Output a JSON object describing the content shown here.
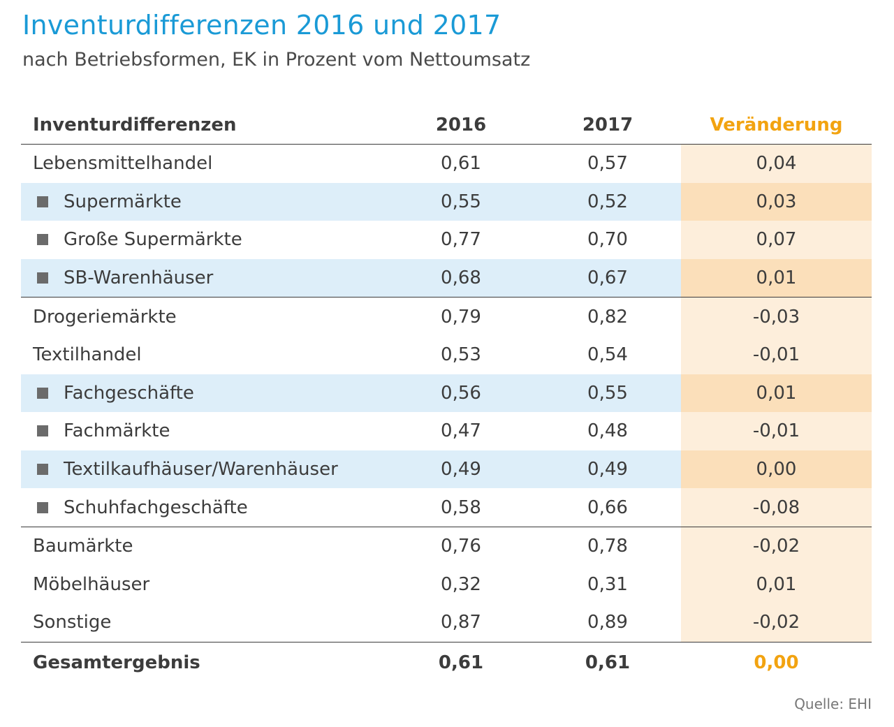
{
  "title": "Inventurdifferenzen 2016 und 2017",
  "subtitle": "nach Betriebsformen, EK in Prozent vom Nettoumsatz",
  "source": "Quelle: EHI",
  "colors": {
    "title": "#1a9ad6",
    "highlight": "#f2a310",
    "row_shade": "#ddeef9",
    "change_col": "#fdeedb",
    "change_col_shaded": "#fbdfba",
    "bullet": "#6b6b6b"
  },
  "chart_data": {
    "type": "table",
    "columns": [
      "Inventurdifferenzen",
      "2016",
      "2017",
      "Veränderung"
    ],
    "rows": [
      {
        "label": "Lebensmittelhandel",
        "level": 0,
        "y2016": "0,61",
        "y2017": "0,57",
        "change": "0,04"
      },
      {
        "label": "Supermärkte",
        "level": 1,
        "y2016": "0,55",
        "y2017": "0,52",
        "change": "0,03"
      },
      {
        "label": "Große Supermärkte",
        "level": 1,
        "y2016": "0,77",
        "y2017": "0,70",
        "change": "0,07"
      },
      {
        "label": "SB-Warenhäuser",
        "level": 1,
        "y2016": "0,68",
        "y2017": "0,67",
        "change": "0,01"
      },
      {
        "label": "Drogeriemärkte",
        "level": 0,
        "y2016": "0,79",
        "y2017": "0,82",
        "change": "-0,03"
      },
      {
        "label": "Textilhandel",
        "level": 0,
        "y2016": "0,53",
        "y2017": "0,54",
        "change": "-0,01"
      },
      {
        "label": "Fachgeschäfte",
        "level": 1,
        "y2016": "0,56",
        "y2017": "0,55",
        "change": "0,01"
      },
      {
        "label": "Fachmärkte",
        "level": 1,
        "y2016": "0,47",
        "y2017": "0,48",
        "change": "-0,01"
      },
      {
        "label": "Textilkaufhäuser/Warenhäuser",
        "level": 1,
        "y2016": "0,49",
        "y2017": "0,49",
        "change": "0,00"
      },
      {
        "label": "Schuhfachgeschäfte",
        "level": 1,
        "y2016": "0,58",
        "y2017": "0,66",
        "change": "-0,08"
      },
      {
        "label": "Baumärkte",
        "level": 0,
        "y2016": "0,76",
        "y2017": "0,78",
        "change": "-0,02"
      },
      {
        "label": "Möbelhäuser",
        "level": 0,
        "y2016": "0,32",
        "y2017": "0,31",
        "change": "0,01"
      },
      {
        "label": "Sonstige",
        "level": 0,
        "y2016": "0,87",
        "y2017": "0,89",
        "change": "-0,02"
      }
    ],
    "total": {
      "label": "Gesamtergebnis",
      "y2016": "0,61",
      "y2017": "0,61",
      "change": "0,00"
    }
  }
}
